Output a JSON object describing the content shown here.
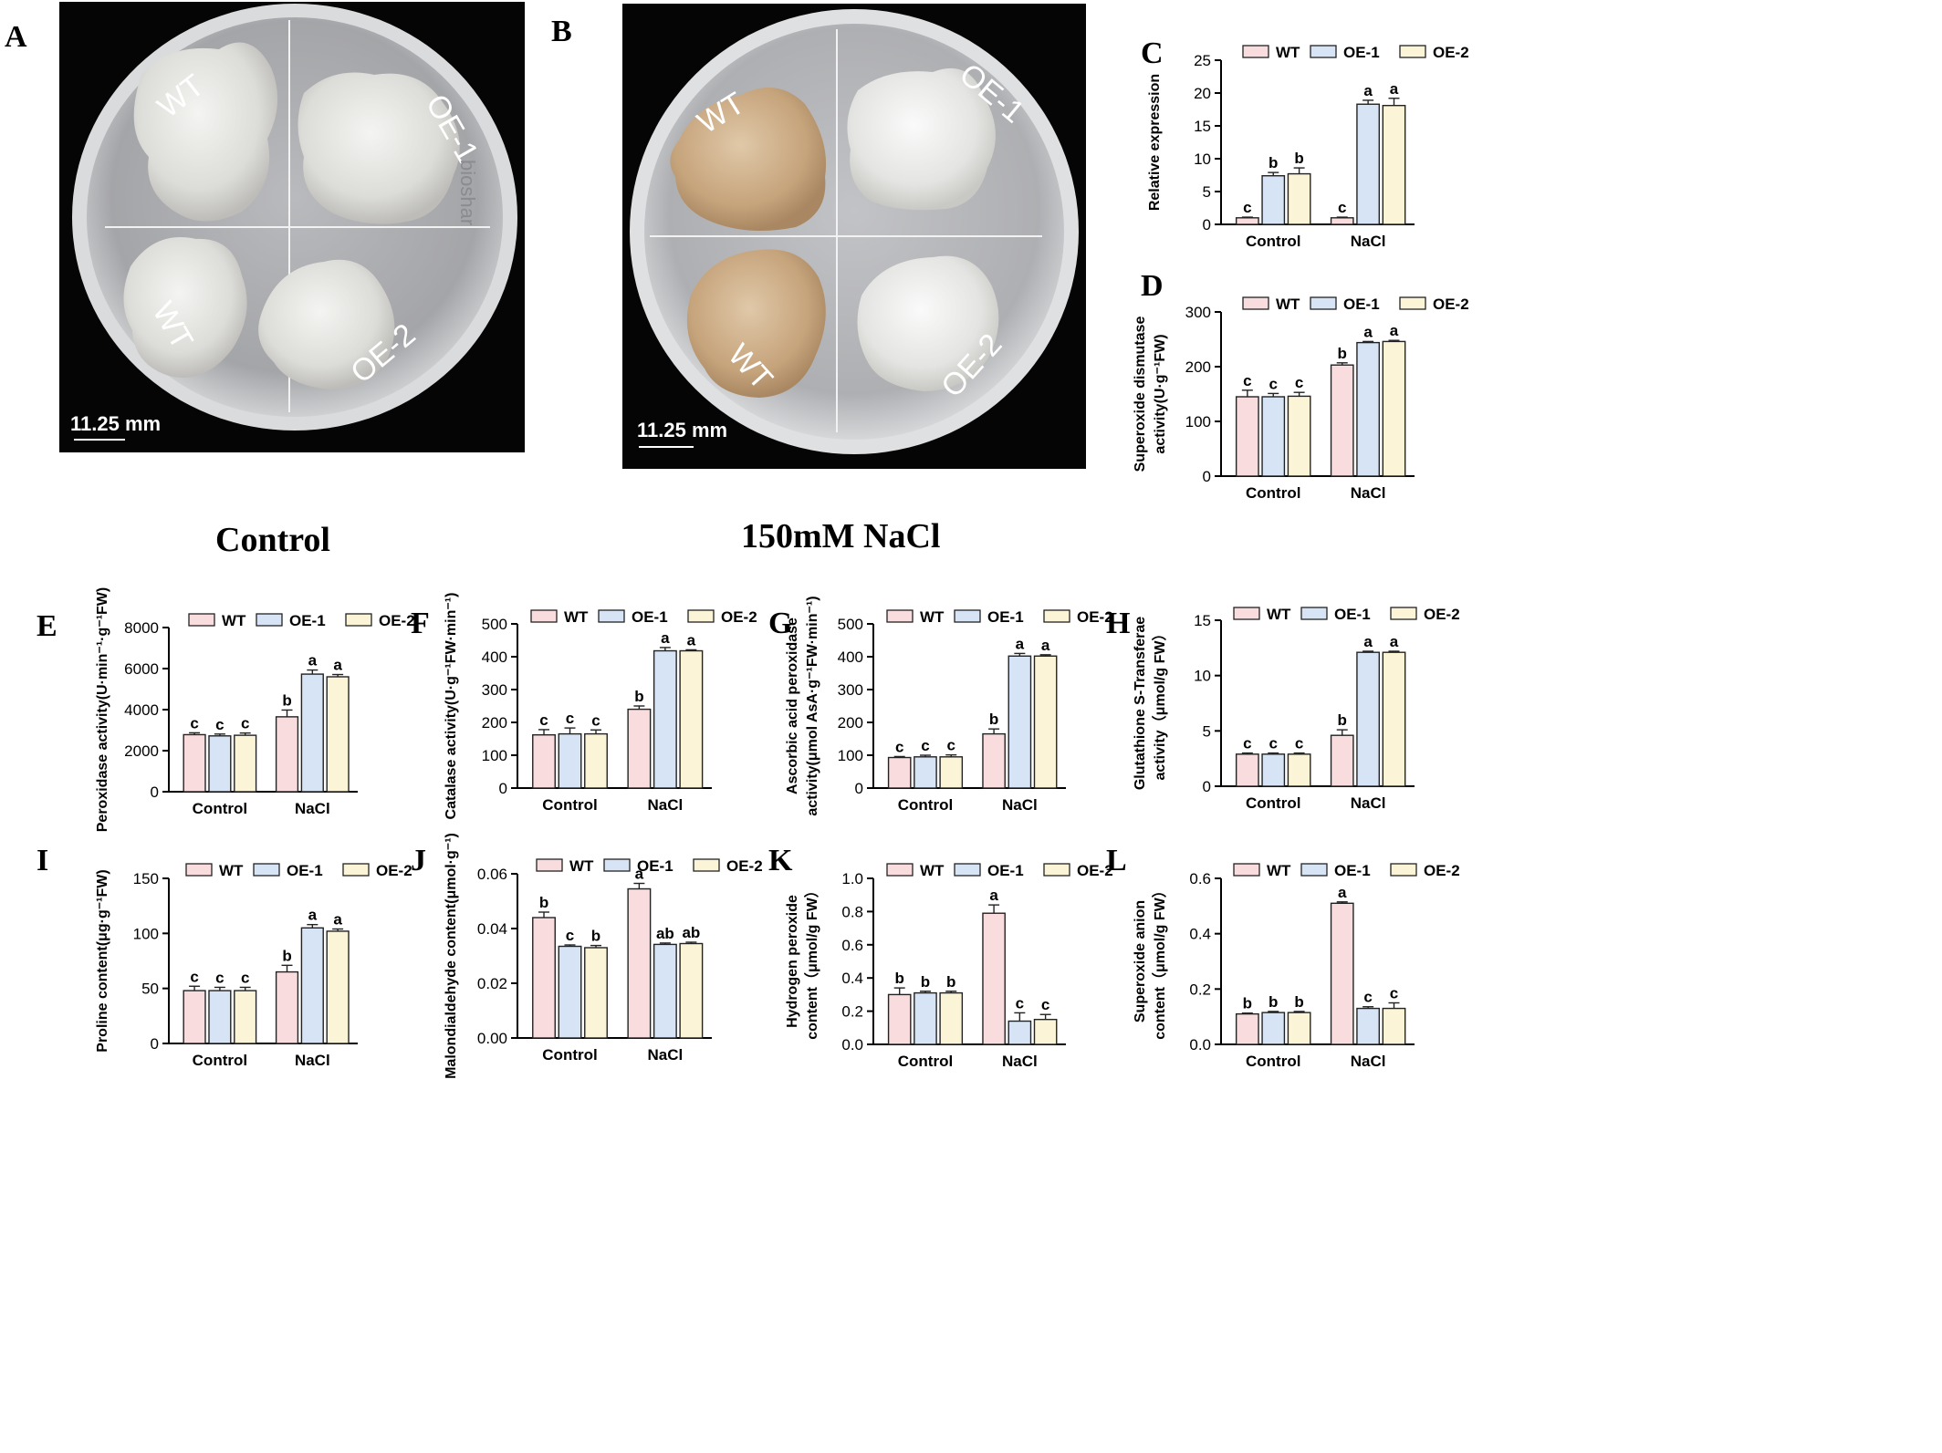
{
  "panels": {
    "A": "A",
    "B": "B",
    "C": "C",
    "D": "D",
    "E": "E",
    "F": "F",
    "G": "G",
    "H": "H",
    "I": "I",
    "J": "J",
    "K": "K",
    "L": "L"
  },
  "photo_a": {
    "labels": [
      "WT",
      "OE-1",
      "WT",
      "OE-2"
    ],
    "scale": "11.25 mm",
    "watermark": "bioshar"
  },
  "photo_b": {
    "labels": [
      "WT",
      "OE-1",
      "WT",
      "OE-2"
    ],
    "scale": "11.25 mm"
  },
  "conditions": {
    "control": "Control",
    "nacl": "150mM NaCl"
  },
  "colors": {
    "WT": "#f9dcdd",
    "OE-1": "#d6e4f5",
    "OE-2": "#fbf4d6",
    "axis": "#000000",
    "photo_bg": "#050505"
  },
  "chart_data": [
    {
      "panel": "C",
      "type": "bar",
      "categories": [
        "Control",
        "NaCl"
      ],
      "series": [
        {
          "name": "WT",
          "values": [
            1.0,
            1.0
          ],
          "errors": [
            0.1,
            0.1
          ],
          "letters": [
            "c",
            "c"
          ]
        },
        {
          "name": "OE-1",
          "values": [
            7.4,
            18.3
          ],
          "errors": [
            0.5,
            0.6
          ],
          "letters": [
            "b",
            "a"
          ]
        },
        {
          "name": "OE-2",
          "values": [
            7.7,
            18.1
          ],
          "errors": [
            0.9,
            1.1
          ],
          "letters": [
            "b",
            "a"
          ]
        }
      ],
      "ylabel": [
        "Relative expression"
      ],
      "ylim": [
        0,
        25
      ],
      "yticks": [
        0,
        5,
        10,
        15,
        20,
        25
      ],
      "legend": "top"
    },
    {
      "panel": "D",
      "type": "bar",
      "categories": [
        "Control",
        "NaCl"
      ],
      "series": [
        {
          "name": "WT",
          "values": [
            145,
            203
          ],
          "errors": [
            12,
            4
          ],
          "letters": [
            "c",
            "b"
          ]
        },
        {
          "name": "OE-1",
          "values": [
            145,
            244
          ],
          "errors": [
            6,
            2
          ],
          "letters": [
            "c",
            "a"
          ]
        },
        {
          "name": "OE-2",
          "values": [
            146,
            246
          ],
          "errors": [
            7,
            2
          ],
          "letters": [
            "c",
            "a"
          ]
        }
      ],
      "ylabel": [
        "Superoxide dismutase",
        "activity(U·g⁻¹FW)"
      ],
      "ylim": [
        0,
        300
      ],
      "yticks": [
        0,
        100,
        200,
        300
      ],
      "legend": "top"
    },
    {
      "panel": "E",
      "type": "bar",
      "categories": [
        "Control",
        "NaCl"
      ],
      "series": [
        {
          "name": "WT",
          "values": [
            2780,
            3650
          ],
          "errors": [
            90,
            330
          ],
          "letters": [
            "c",
            "b"
          ]
        },
        {
          "name": "OE-1",
          "values": [
            2720,
            5730
          ],
          "errors": [
            90,
            200
          ],
          "letters": [
            "c",
            "a"
          ]
        },
        {
          "name": "OE-2",
          "values": [
            2750,
            5600
          ],
          "errors": [
            110,
            110
          ],
          "letters": [
            "c",
            "a"
          ]
        }
      ],
      "ylabel": [
        "Peroxidase activity(U·min⁻¹·g⁻¹FW)"
      ],
      "ylim": [
        0,
        8000
      ],
      "yticks": [
        0,
        2000,
        4000,
        6000,
        8000
      ],
      "legend": "top"
    },
    {
      "panel": "F",
      "type": "bar",
      "categories": [
        "Control",
        "NaCl"
      ],
      "series": [
        {
          "name": "WT",
          "values": [
            162,
            240
          ],
          "errors": [
            16,
            10
          ],
          "letters": [
            "c",
            "b"
          ]
        },
        {
          "name": "OE-1",
          "values": [
            165,
            418
          ],
          "errors": [
            18,
            10
          ],
          "letters": [
            "c",
            "a"
          ]
        },
        {
          "name": "OE-2",
          "values": [
            165,
            418
          ],
          "errors": [
            12,
            3
          ],
          "letters": [
            "c",
            "a"
          ]
        }
      ],
      "ylabel": [
        "Catalase activity(U·g⁻¹FW·min⁻¹)"
      ],
      "ylim": [
        0,
        500
      ],
      "yticks": [
        0,
        100,
        200,
        300,
        400,
        500
      ],
      "legend": "top"
    },
    {
      "panel": "G",
      "type": "bar",
      "categories": [
        "Control",
        "NaCl"
      ],
      "series": [
        {
          "name": "WT",
          "values": [
            93,
            165
          ],
          "errors": [
            3,
            15
          ],
          "letters": [
            "c",
            "b"
          ]
        },
        {
          "name": "OE-1",
          "values": [
            95,
            402
          ],
          "errors": [
            5,
            8
          ],
          "letters": [
            "c",
            "a"
          ]
        },
        {
          "name": "OE-2",
          "values": [
            95,
            402
          ],
          "errors": [
            6,
            4
          ],
          "letters": [
            "c",
            "a"
          ]
        }
      ],
      "ylabel": [
        "Ascorbic acid peroxidase",
        "activity(μmol AsA·g⁻¹FW·min⁻¹)"
      ],
      "ylim": [
        0,
        500
      ],
      "yticks": [
        0,
        100,
        200,
        300,
        400,
        500
      ],
      "legend": "top"
    },
    {
      "panel": "H",
      "type": "bar",
      "categories": [
        "Control",
        "NaCl"
      ],
      "series": [
        {
          "name": "WT",
          "values": [
            2.9,
            4.6
          ],
          "errors": [
            0.1,
            0.5
          ],
          "letters": [
            "c",
            "b"
          ]
        },
        {
          "name": "OE-1",
          "values": [
            2.9,
            12.1
          ],
          "errors": [
            0.1,
            0.1
          ],
          "letters": [
            "c",
            "a"
          ]
        },
        {
          "name": "OE-2",
          "values": [
            2.9,
            12.1
          ],
          "errors": [
            0.1,
            0.1
          ],
          "letters": [
            "c",
            "a"
          ]
        }
      ],
      "ylabel": [
        "Glutathione S-Transferae",
        "activity（μmol/g FW）"
      ],
      "ylim": [
        0,
        15
      ],
      "yticks": [
        0,
        5,
        10,
        15
      ],
      "legend": "top"
    },
    {
      "panel": "I",
      "type": "bar",
      "categories": [
        "Control",
        "NaCl"
      ],
      "series": [
        {
          "name": "WT",
          "values": [
            48,
            65
          ],
          "errors": [
            4,
            6
          ],
          "letters": [
            "c",
            "b"
          ]
        },
        {
          "name": "OE-1",
          "values": [
            48,
            105
          ],
          "errors": [
            3,
            3
          ],
          "letters": [
            "c",
            "a"
          ]
        },
        {
          "name": "OE-2",
          "values": [
            48,
            102
          ],
          "errors": [
            3,
            2
          ],
          "letters": [
            "c",
            "a"
          ]
        }
      ],
      "ylabel": [
        "Proline content(μg·g⁻¹FW)"
      ],
      "ylim": [
        0,
        150
      ],
      "yticks": [
        0,
        50,
        100,
        150
      ],
      "legend": "top"
    },
    {
      "panel": "J",
      "type": "bar",
      "categories": [
        "Control",
        "NaCl"
      ],
      "series": [
        {
          "name": "WT",
          "values": [
            0.044,
            0.0545
          ],
          "errors": [
            0.002,
            0.002
          ],
          "letters": [
            "b",
            "a"
          ]
        },
        {
          "name": "OE-1",
          "values": [
            0.0335,
            0.0342
          ],
          "errors": [
            0.0005,
            0.0005
          ],
          "letters": [
            "c",
            "ab"
          ]
        },
        {
          "name": "OE-2",
          "values": [
            0.033,
            0.0345
          ],
          "errors": [
            0.0008,
            0.0005
          ],
          "letters": [
            "b",
            "ab"
          ]
        }
      ],
      "ylabel": [
        "Malondialdehyde content(μmol·g⁻¹)"
      ],
      "ylim": [
        0,
        0.06
      ],
      "yticks": [
        0.0,
        0.02,
        0.04,
        0.06
      ],
      "ytickfmt": 2,
      "legend": "top"
    },
    {
      "panel": "K",
      "type": "bar",
      "categories": [
        "Control",
        "NaCl"
      ],
      "series": [
        {
          "name": "WT",
          "values": [
            0.3,
            0.79
          ],
          "errors": [
            0.04,
            0.05
          ],
          "letters": [
            "b",
            "a"
          ]
        },
        {
          "name": "OE-1",
          "values": [
            0.31,
            0.14
          ],
          "errors": [
            0.01,
            0.05
          ],
          "letters": [
            "b",
            "c"
          ]
        },
        {
          "name": "OE-2",
          "values": [
            0.31,
            0.15
          ],
          "errors": [
            0.01,
            0.03
          ],
          "letters": [
            "b",
            "c"
          ]
        }
      ],
      "ylabel": [
        "Hydrogen peroxide",
        "content（μmol/g FW）"
      ],
      "ylim": [
        0,
        1.0
      ],
      "yticks": [
        0.0,
        0.2,
        0.4,
        0.6,
        0.8,
        1.0
      ],
      "ytickfmt": 1,
      "legend": "top"
    },
    {
      "panel": "L",
      "type": "bar",
      "categories": [
        "Control",
        "NaCl"
      ],
      "series": [
        {
          "name": "WT",
          "values": [
            0.11,
            0.51
          ],
          "errors": [
            0.003,
            0.005
          ],
          "letters": [
            "b",
            "a"
          ]
        },
        {
          "name": "OE-1",
          "values": [
            0.115,
            0.13
          ],
          "errors": [
            0.004,
            0.006
          ],
          "letters": [
            "b",
            "c"
          ]
        },
        {
          "name": "OE-2",
          "values": [
            0.115,
            0.13
          ],
          "errors": [
            0.004,
            0.02
          ],
          "letters": [
            "b",
            "c"
          ]
        }
      ],
      "ylabel": [
        "Superoxide anion",
        "content（μmol/g FW）"
      ],
      "ylim": [
        0,
        0.6
      ],
      "yticks": [
        0.0,
        0.2,
        0.4,
        0.6
      ],
      "ytickfmt": 1,
      "legend": "top"
    }
  ]
}
